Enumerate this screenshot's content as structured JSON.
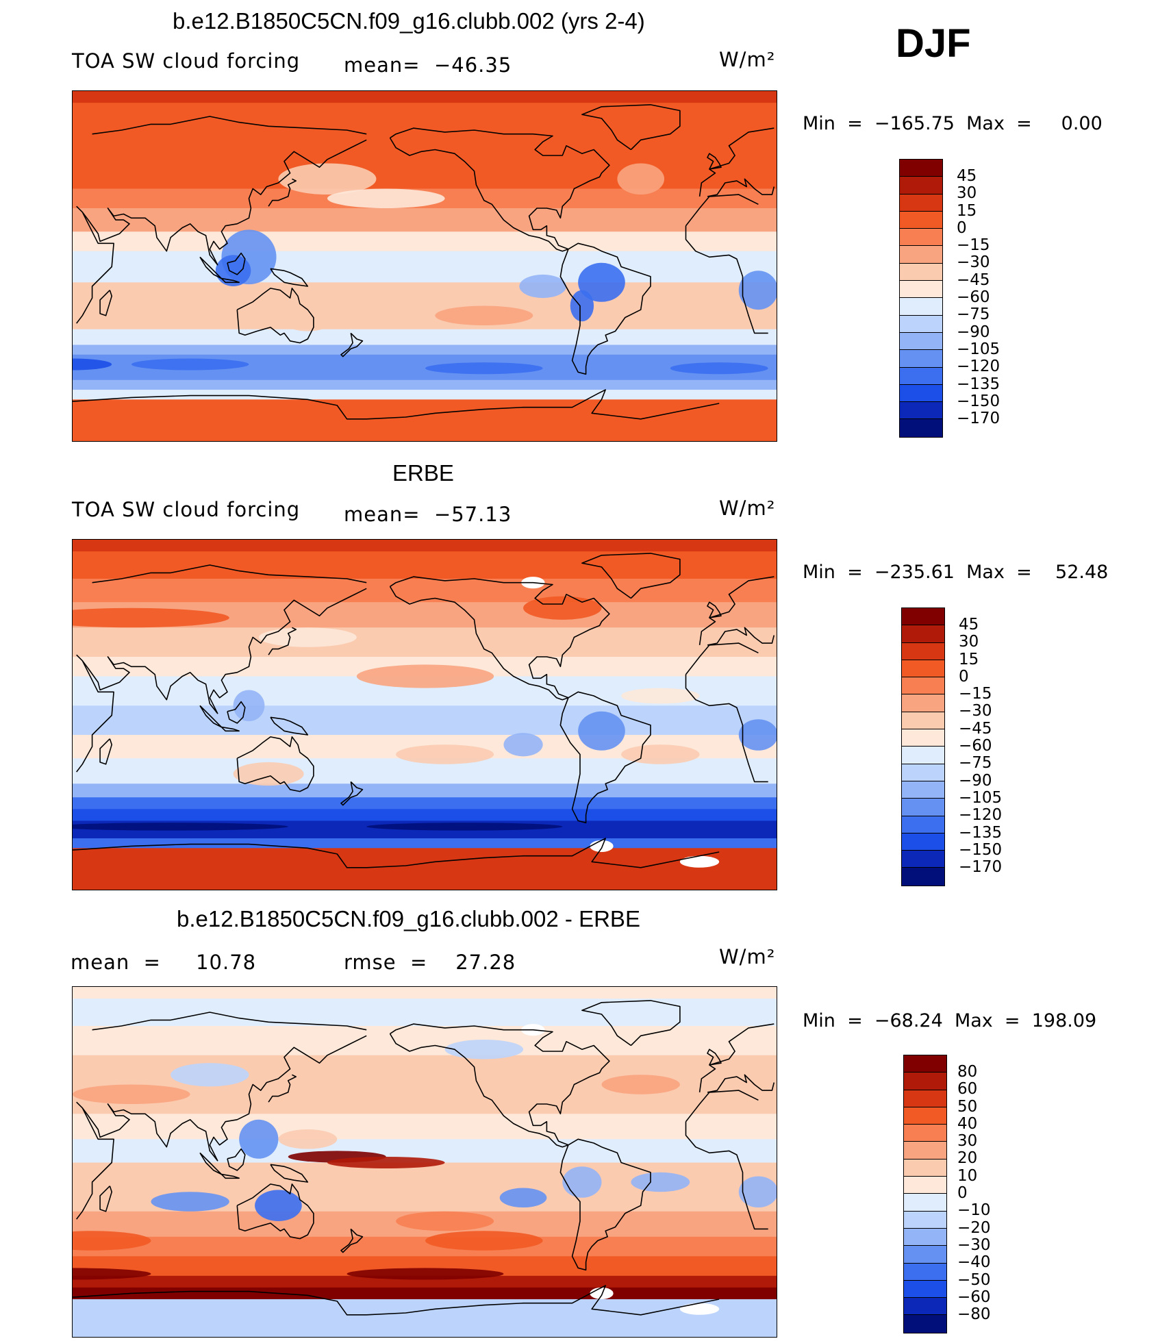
{
  "season": "DJF",
  "colors": {
    "scale": [
      "#000f7a",
      "#0b28b8",
      "#1c4fe8",
      "#3b6fef",
      "#6592f2",
      "#93b4f6",
      "#bcd4fb",
      "#e0edfd",
      "#fde8d9",
      "#fbcbb0",
      "#f9a480",
      "#f77f52",
      "#f15a24",
      "#d83714",
      "#b01a08",
      "#800000"
    ],
    "coast": "#000000"
  },
  "panels": [
    {
      "title": "b.e12.B1850C5CN.f09_g16.clubb.002 (yrs 2-4)",
      "left_label": "TOA SW cloud forcing",
      "mid_label": "mean=  −46.35",
      "unit": "W/m²",
      "min_max": "Min  =  −165.75  Max  =     0.00",
      "colorbar_labels": [
        "45",
        "30",
        "15",
        "0",
        "−15",
        "−30",
        "−45",
        "−60",
        "−75",
        "−90",
        "−105",
        "−120",
        "−135",
        "−150",
        "−170"
      ],
      "map_type": "model"
    },
    {
      "title": "ERBE",
      "left_label": "TOA SW cloud forcing",
      "mid_label": "mean=  −57.13",
      "unit": "W/m²",
      "min_max": "Min  =  −235.61  Max  =    52.48",
      "colorbar_labels": [
        "45",
        "30",
        "15",
        "0",
        "−15",
        "−30",
        "−45",
        "−60",
        "−75",
        "−90",
        "−105",
        "−120",
        "−135",
        "−150",
        "−170"
      ],
      "map_type": "obs"
    },
    {
      "title": "b.e12.B1850C5CN.f09_g16.clubb.002 - ERBE",
      "left_label": "mean  =     10.78",
      "mid_label": "rmse  =    27.28",
      "unit": "W/m²",
      "min_max": "Min  =  −68.24  Max  =  198.09",
      "colorbar_labels": [
        "80",
        "60",
        "50",
        "40",
        "30",
        "20",
        "10",
        "0",
        "−10",
        "−20",
        "−30",
        "−40",
        "−50",
        "−60",
        "−80"
      ],
      "map_type": "diff"
    }
  ]
}
